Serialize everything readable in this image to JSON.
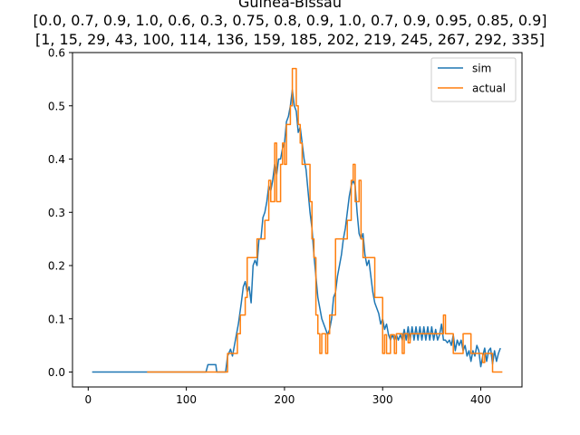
{
  "chart_data": {
    "type": "line",
    "title_lines": [
      "Guinea-Bissau",
      "[0.0, 0.7, 0.9, 1.0, 0.6, 0.3, 0.75, 0.8, 0.9, 1.0, 0.7, 0.9, 0.95, 0.85, 0.9]",
      "[1, 15, 29, 43, 100, 114, 136, 159, 185, 202, 219, 245, 267, 292, 335]"
    ],
    "xlabel": "",
    "ylabel": "",
    "xlim": [
      -16,
      442
    ],
    "ylim": [
      -0.028,
      0.6
    ],
    "xticks": [
      0,
      100,
      200,
      300,
      400
    ],
    "yticks": [
      0.0,
      0.1,
      0.2,
      0.3,
      0.4,
      0.5,
      0.6
    ],
    "xtick_labels": [
      "0",
      "100",
      "200",
      "300",
      "400"
    ],
    "ytick_labels": [
      "0.0",
      "0.1",
      "0.2",
      "0.3",
      "0.4",
      "0.5",
      "0.6"
    ],
    "grid": false,
    "legend_position": "upper-right",
    "series": [
      {
        "name": "sim",
        "color": "#1f77b4",
        "step": false,
        "points": [
          [
            4,
            0
          ],
          [
            60,
            0
          ],
          [
            120,
            0
          ],
          [
            122,
            0.014
          ],
          [
            130,
            0.014
          ],
          [
            131,
            0
          ],
          [
            140,
            0
          ],
          [
            142,
            0.03
          ],
          [
            145,
            0.043
          ],
          [
            147,
            0.03
          ],
          [
            150,
            0.06
          ],
          [
            153,
            0.09
          ],
          [
            156,
            0.13
          ],
          [
            158,
            0.16
          ],
          [
            160,
            0.17
          ],
          [
            162,
            0.15
          ],
          [
            164,
            0.16
          ],
          [
            166,
            0.13
          ],
          [
            168,
            0.2
          ],
          [
            170,
            0.21
          ],
          [
            172,
            0.2
          ],
          [
            174,
            0.25
          ],
          [
            176,
            0.25
          ],
          [
            178,
            0.29
          ],
          [
            180,
            0.3
          ],
          [
            182,
            0.32
          ],
          [
            184,
            0.35
          ],
          [
            186,
            0.34
          ],
          [
            188,
            0.36
          ],
          [
            190,
            0.39
          ],
          [
            192,
            0.37
          ],
          [
            194,
            0.4
          ],
          [
            196,
            0.4
          ],
          [
            198,
            0.42
          ],
          [
            200,
            0.43
          ],
          [
            202,
            0.47
          ],
          [
            204,
            0.48
          ],
          [
            206,
            0.5
          ],
          [
            208,
            0.53
          ],
          [
            210,
            0.5
          ],
          [
            212,
            0.49
          ],
          [
            214,
            0.45
          ],
          [
            216,
            0.46
          ],
          [
            218,
            0.43
          ],
          [
            220,
            0.4
          ],
          [
            222,
            0.38
          ],
          [
            224,
            0.34
          ],
          [
            226,
            0.3
          ],
          [
            228,
            0.27
          ],
          [
            230,
            0.22
          ],
          [
            232,
            0.18
          ],
          [
            234,
            0.14
          ],
          [
            236,
            0.12
          ],
          [
            238,
            0.1
          ],
          [
            240,
            0.09
          ],
          [
            242,
            0.08
          ],
          [
            244,
            0.07
          ],
          [
            246,
            0.08
          ],
          [
            248,
            0.1
          ],
          [
            250,
            0.14
          ],
          [
            252,
            0.15
          ],
          [
            254,
            0.18
          ],
          [
            256,
            0.2
          ],
          [
            258,
            0.22
          ],
          [
            260,
            0.25
          ],
          [
            262,
            0.27
          ],
          [
            264,
            0.3
          ],
          [
            266,
            0.33
          ],
          [
            268,
            0.35
          ],
          [
            270,
            0.36
          ],
          [
            272,
            0.35
          ],
          [
            274,
            0.3
          ],
          [
            276,
            0.26
          ],
          [
            278,
            0.25
          ],
          [
            280,
            0.26
          ],
          [
            282,
            0.22
          ],
          [
            284,
            0.2
          ],
          [
            286,
            0.21
          ],
          [
            288,
            0.18
          ],
          [
            290,
            0.15
          ],
          [
            292,
            0.13
          ],
          [
            294,
            0.12
          ],
          [
            296,
            0.11
          ],
          [
            298,
            0.09
          ],
          [
            300,
            0.1
          ],
          [
            302,
            0.08
          ],
          [
            304,
            0.09
          ],
          [
            306,
            0.07
          ],
          [
            308,
            0.06
          ],
          [
            310,
            0.07
          ],
          [
            312,
            0.06
          ],
          [
            314,
            0.07
          ],
          [
            316,
            0.06
          ],
          [
            318,
            0.07
          ],
          [
            320,
            0.06
          ],
          [
            322,
            0.08
          ],
          [
            324,
            0.06
          ],
          [
            326,
            0.085
          ],
          [
            328,
            0.06
          ],
          [
            330,
            0.085
          ],
          [
            332,
            0.06
          ],
          [
            334,
            0.085
          ],
          [
            336,
            0.06
          ],
          [
            338,
            0.085
          ],
          [
            340,
            0.06
          ],
          [
            342,
            0.085
          ],
          [
            344,
            0.06
          ],
          [
            346,
            0.085
          ],
          [
            348,
            0.06
          ],
          [
            350,
            0.085
          ],
          [
            352,
            0.06
          ],
          [
            354,
            0.08
          ],
          [
            356,
            0.06
          ],
          [
            358,
            0.07
          ],
          [
            360,
            0.09
          ],
          [
            362,
            0.06
          ],
          [
            364,
            0.06
          ],
          [
            366,
            0.055
          ],
          [
            368,
            0.06
          ],
          [
            370,
            0.05
          ],
          [
            372,
            0.07
          ],
          [
            374,
            0.04
          ],
          [
            376,
            0.06
          ],
          [
            378,
            0.05
          ],
          [
            380,
            0.06
          ],
          [
            382,
            0.04
          ],
          [
            384,
            0.05
          ],
          [
            386,
            0.03
          ],
          [
            388,
            0.04
          ],
          [
            390,
            0.02
          ],
          [
            392,
            0.04
          ],
          [
            394,
            0.03
          ],
          [
            396,
            0.05
          ],
          [
            398,
            0.04
          ],
          [
            400,
            0.01
          ],
          [
            402,
            0.03
          ],
          [
            404,
            0.045
          ],
          [
            406,
            0.02
          ],
          [
            408,
            0.04
          ],
          [
            410,
            0.045
          ],
          [
            412,
            0.015
          ],
          [
            414,
            0.04
          ],
          [
            416,
            0.02
          ],
          [
            418,
            0.035
          ],
          [
            420,
            0.045
          ]
        ]
      },
      {
        "name": "actual",
        "color": "#ff7f0e",
        "step": true,
        "points": [
          [
            60,
            0
          ],
          [
            140,
            0
          ],
          [
            142,
            0.035
          ],
          [
            150,
            0.035
          ],
          [
            152,
            0.072
          ],
          [
            155,
            0.107
          ],
          [
            160,
            0.14
          ],
          [
            162,
            0.215
          ],
          [
            170,
            0.215
          ],
          [
            172,
            0.25
          ],
          [
            178,
            0.25
          ],
          [
            180,
            0.285
          ],
          [
            184,
            0.36
          ],
          [
            186,
            0.32
          ],
          [
            190,
            0.43
          ],
          [
            192,
            0.32
          ],
          [
            196,
            0.39
          ],
          [
            198,
            0.43
          ],
          [
            200,
            0.39
          ],
          [
            202,
            0.465
          ],
          [
            204,
            0.465
          ],
          [
            206,
            0.5
          ],
          [
            208,
            0.57
          ],
          [
            212,
            0.5
          ],
          [
            214,
            0.465
          ],
          [
            216,
            0.43
          ],
          [
            218,
            0.39
          ],
          [
            224,
            0.39
          ],
          [
            226,
            0.32
          ],
          [
            228,
            0.25
          ],
          [
            230,
            0.215
          ],
          [
            232,
            0.107
          ],
          [
            234,
            0.072
          ],
          [
            236,
            0.035
          ],
          [
            238,
            0.072
          ],
          [
            240,
            0.072
          ],
          [
            242,
            0.035
          ],
          [
            244,
            0.072
          ],
          [
            246,
            0.107
          ],
          [
            250,
            0.107
          ],
          [
            252,
            0.25
          ],
          [
            262,
            0.25
          ],
          [
            264,
            0.285
          ],
          [
            266,
            0.285
          ],
          [
            268,
            0.36
          ],
          [
            270,
            0.39
          ],
          [
            272,
            0.32
          ],
          [
            274,
            0.32
          ],
          [
            276,
            0.36
          ],
          [
            278,
            0.25
          ],
          [
            280,
            0.215
          ],
          [
            290,
            0.215
          ],
          [
            292,
            0.14
          ],
          [
            298,
            0.14
          ],
          [
            300,
            0.035
          ],
          [
            302,
            0.07
          ],
          [
            304,
            0.035
          ],
          [
            306,
            0.035
          ],
          [
            308,
            0.07
          ],
          [
            310,
            0.07
          ],
          [
            312,
            0.035
          ],
          [
            314,
            0.072
          ],
          [
            318,
            0.072
          ],
          [
            320,
            0.035
          ],
          [
            322,
            0.072
          ],
          [
            324,
            0.072
          ],
          [
            326,
            0.055
          ],
          [
            328,
            0.072
          ],
          [
            360,
            0.072
          ],
          [
            362,
            0.107
          ],
          [
            364,
            0.072
          ],
          [
            370,
            0.072
          ],
          [
            372,
            0.035
          ],
          [
            380,
            0.035
          ],
          [
            382,
            0.072
          ],
          [
            388,
            0.072
          ],
          [
            390,
            0.035
          ],
          [
            400,
            0.035
          ],
          [
            402,
            0.018
          ],
          [
            404,
            0.035
          ],
          [
            410,
            0.035
          ],
          [
            412,
            0
          ],
          [
            422,
            0
          ]
        ]
      }
    ]
  }
}
